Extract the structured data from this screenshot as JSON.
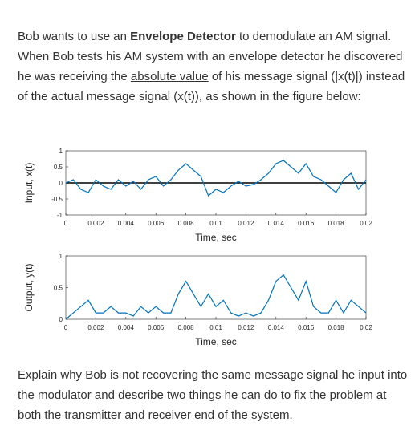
{
  "intro": {
    "before": "Bob wants to use an ",
    "bold": "Envelope Detector",
    "middle": " to demodulate an AM signal. When Bob tests his AM system with an envelope detector he discovered he was receiving the ",
    "underline": "absolute value",
    "after": " of his message signal (|x(t)|) instead of the actual message signal (x(t)), as shown in the figure below:"
  },
  "figure": {
    "plots": [
      {
        "ylabel": "Input, x(t)",
        "xlabel": "Time, sec",
        "color": "#0072bd",
        "zero_line": true,
        "xlim": [
          0,
          0.02
        ],
        "xticks": [
          0,
          0.002,
          0.004,
          0.006,
          0.008,
          0.01,
          0.012,
          0.014,
          0.016,
          0.018,
          0.02
        ],
        "ylim": [
          -1,
          1
        ],
        "yticks": [
          -1,
          -0.5,
          0,
          0.5,
          1
        ],
        "x": [
          0,
          0.0005,
          0.001,
          0.0015,
          0.002,
          0.0025,
          0.003,
          0.0035,
          0.004,
          0.0045,
          0.005,
          0.0055,
          0.006,
          0.0065,
          0.007,
          0.0075,
          0.008,
          0.0085,
          0.009,
          0.0095,
          0.01,
          0.0105,
          0.011,
          0.0115,
          0.012,
          0.0125,
          0.013,
          0.0135,
          0.014,
          0.0145,
          0.015,
          0.0155,
          0.016,
          0.0165,
          0.017,
          0.0175,
          0.018,
          0.0185,
          0.019,
          0.0195,
          0.02
        ],
        "values": [
          0.0,
          0.1,
          -0.2,
          -0.3,
          0.1,
          -0.1,
          -0.2,
          0.1,
          -0.1,
          0.05,
          -0.2,
          0.1,
          0.2,
          -0.1,
          0.1,
          0.4,
          0.6,
          0.4,
          0.2,
          -0.4,
          -0.2,
          -0.3,
          -0.1,
          0.05,
          -0.1,
          -0.05,
          0.1,
          0.3,
          0.6,
          0.7,
          0.5,
          0.3,
          0.6,
          0.2,
          0.1,
          -0.1,
          -0.3,
          0.1,
          0.3,
          -0.2,
          0.1
        ]
      },
      {
        "ylabel": "Output, y(t)",
        "xlabel": "Time, sec",
        "color": "#0072bd",
        "zero_line": false,
        "xlim": [
          0,
          0.02
        ],
        "xticks": [
          0,
          0.002,
          0.004,
          0.006,
          0.008,
          0.01,
          0.012,
          0.014,
          0.016,
          0.018,
          0.02
        ],
        "ylim": [
          0,
          1
        ],
        "yticks": [
          0,
          0.5,
          1
        ],
        "x": [
          0,
          0.0005,
          0.001,
          0.0015,
          0.002,
          0.0025,
          0.003,
          0.0035,
          0.004,
          0.0045,
          0.005,
          0.0055,
          0.006,
          0.0065,
          0.007,
          0.0075,
          0.008,
          0.0085,
          0.009,
          0.0095,
          0.01,
          0.0105,
          0.011,
          0.0115,
          0.012,
          0.0125,
          0.013,
          0.0135,
          0.014,
          0.0145,
          0.015,
          0.0155,
          0.016,
          0.0165,
          0.017,
          0.0175,
          0.018,
          0.0185,
          0.019,
          0.0195,
          0.02
        ],
        "values": [
          0.0,
          0.1,
          0.2,
          0.3,
          0.1,
          0.1,
          0.2,
          0.1,
          0.1,
          0.05,
          0.2,
          0.1,
          0.2,
          0.1,
          0.1,
          0.4,
          0.6,
          0.4,
          0.2,
          0.4,
          0.2,
          0.3,
          0.1,
          0.05,
          0.1,
          0.05,
          0.1,
          0.3,
          0.6,
          0.7,
          0.5,
          0.3,
          0.6,
          0.2,
          0.1,
          0.1,
          0.3,
          0.1,
          0.3,
          0.2,
          0.1
        ]
      }
    ]
  },
  "question": "Explain why Bob is not recovering the same message signal he input into the modulator and describe two things he can do to fix the problem at both the transmitter and receiver end of the system."
}
